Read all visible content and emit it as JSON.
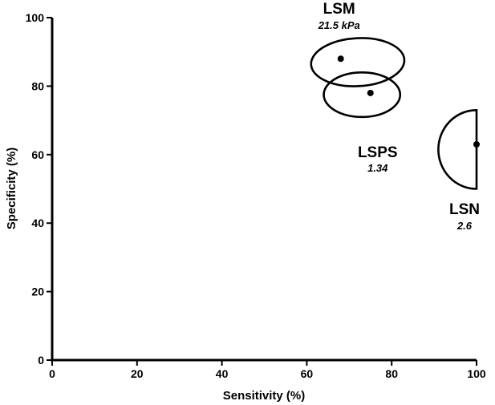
{
  "chart_data": {
    "type": "scatter",
    "title": "",
    "xlabel": "Sensitivity (%)",
    "ylabel": "Specificity (%)",
    "xlim": [
      0,
      100
    ],
    "ylim": [
      0,
      100
    ],
    "xticks": [
      "0",
      "20",
      "40",
      "60",
      "80",
      "100"
    ],
    "yticks": [
      "0",
      "20",
      "40",
      "60",
      "80",
      "100"
    ],
    "grid": false,
    "legend": "none",
    "points": [
      {
        "name": "LSM",
        "value_label": "21.5 kPa",
        "x": 68,
        "y": 88,
        "region_shape": "ellipse",
        "region_x": [
          61,
          83
        ],
        "region_y": [
          80,
          94
        ]
      },
      {
        "name": "LSPS",
        "value_label": "1.34",
        "x": 75,
        "y": 78,
        "region_shape": "ellipse",
        "region_x": [
          64,
          82
        ],
        "region_y": [
          71,
          84
        ]
      },
      {
        "name": "LSN",
        "value_label": "2.6",
        "x": 100,
        "y": 63,
        "region_shape": "half-ellipse",
        "region_x": [
          91,
          100
        ],
        "region_y": [
          50,
          73
        ]
      }
    ]
  }
}
